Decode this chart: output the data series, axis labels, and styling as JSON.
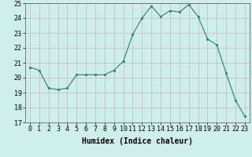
{
  "x": [
    0,
    1,
    2,
    3,
    4,
    5,
    6,
    7,
    8,
    9,
    10,
    11,
    12,
    13,
    14,
    15,
    16,
    17,
    18,
    19,
    20,
    21,
    22,
    23
  ],
  "y": [
    20.7,
    20.5,
    19.3,
    19.2,
    19.3,
    20.2,
    20.2,
    20.2,
    20.2,
    20.5,
    21.1,
    22.9,
    24.0,
    24.8,
    24.1,
    24.5,
    24.4,
    24.9,
    24.1,
    22.6,
    22.2,
    20.3,
    18.5,
    17.4
  ],
  "line_color": "#2d7d6d",
  "marker_color": "#2d7d6d",
  "bg_color": "#ceeee9",
  "grid_color": "#c8b8b8",
  "xlabel": "Humidex (Indice chaleur)",
  "ylim": [
    17,
    25
  ],
  "yticks": [
    17,
    18,
    19,
    20,
    21,
    22,
    23,
    24,
    25
  ],
  "xticks": [
    0,
    1,
    2,
    3,
    4,
    5,
    6,
    7,
    8,
    9,
    10,
    11,
    12,
    13,
    14,
    15,
    16,
    17,
    18,
    19,
    20,
    21,
    22,
    23
  ],
  "xtick_labels": [
    "0",
    "1",
    "2",
    "3",
    "4",
    "5",
    "6",
    "7",
    "8",
    "9",
    "10",
    "11",
    "12",
    "13",
    "14",
    "15",
    "16",
    "17",
    "18",
    "19",
    "20",
    "21",
    "22",
    "23"
  ],
  "xlabel_fontsize": 7,
  "tick_fontsize": 6
}
